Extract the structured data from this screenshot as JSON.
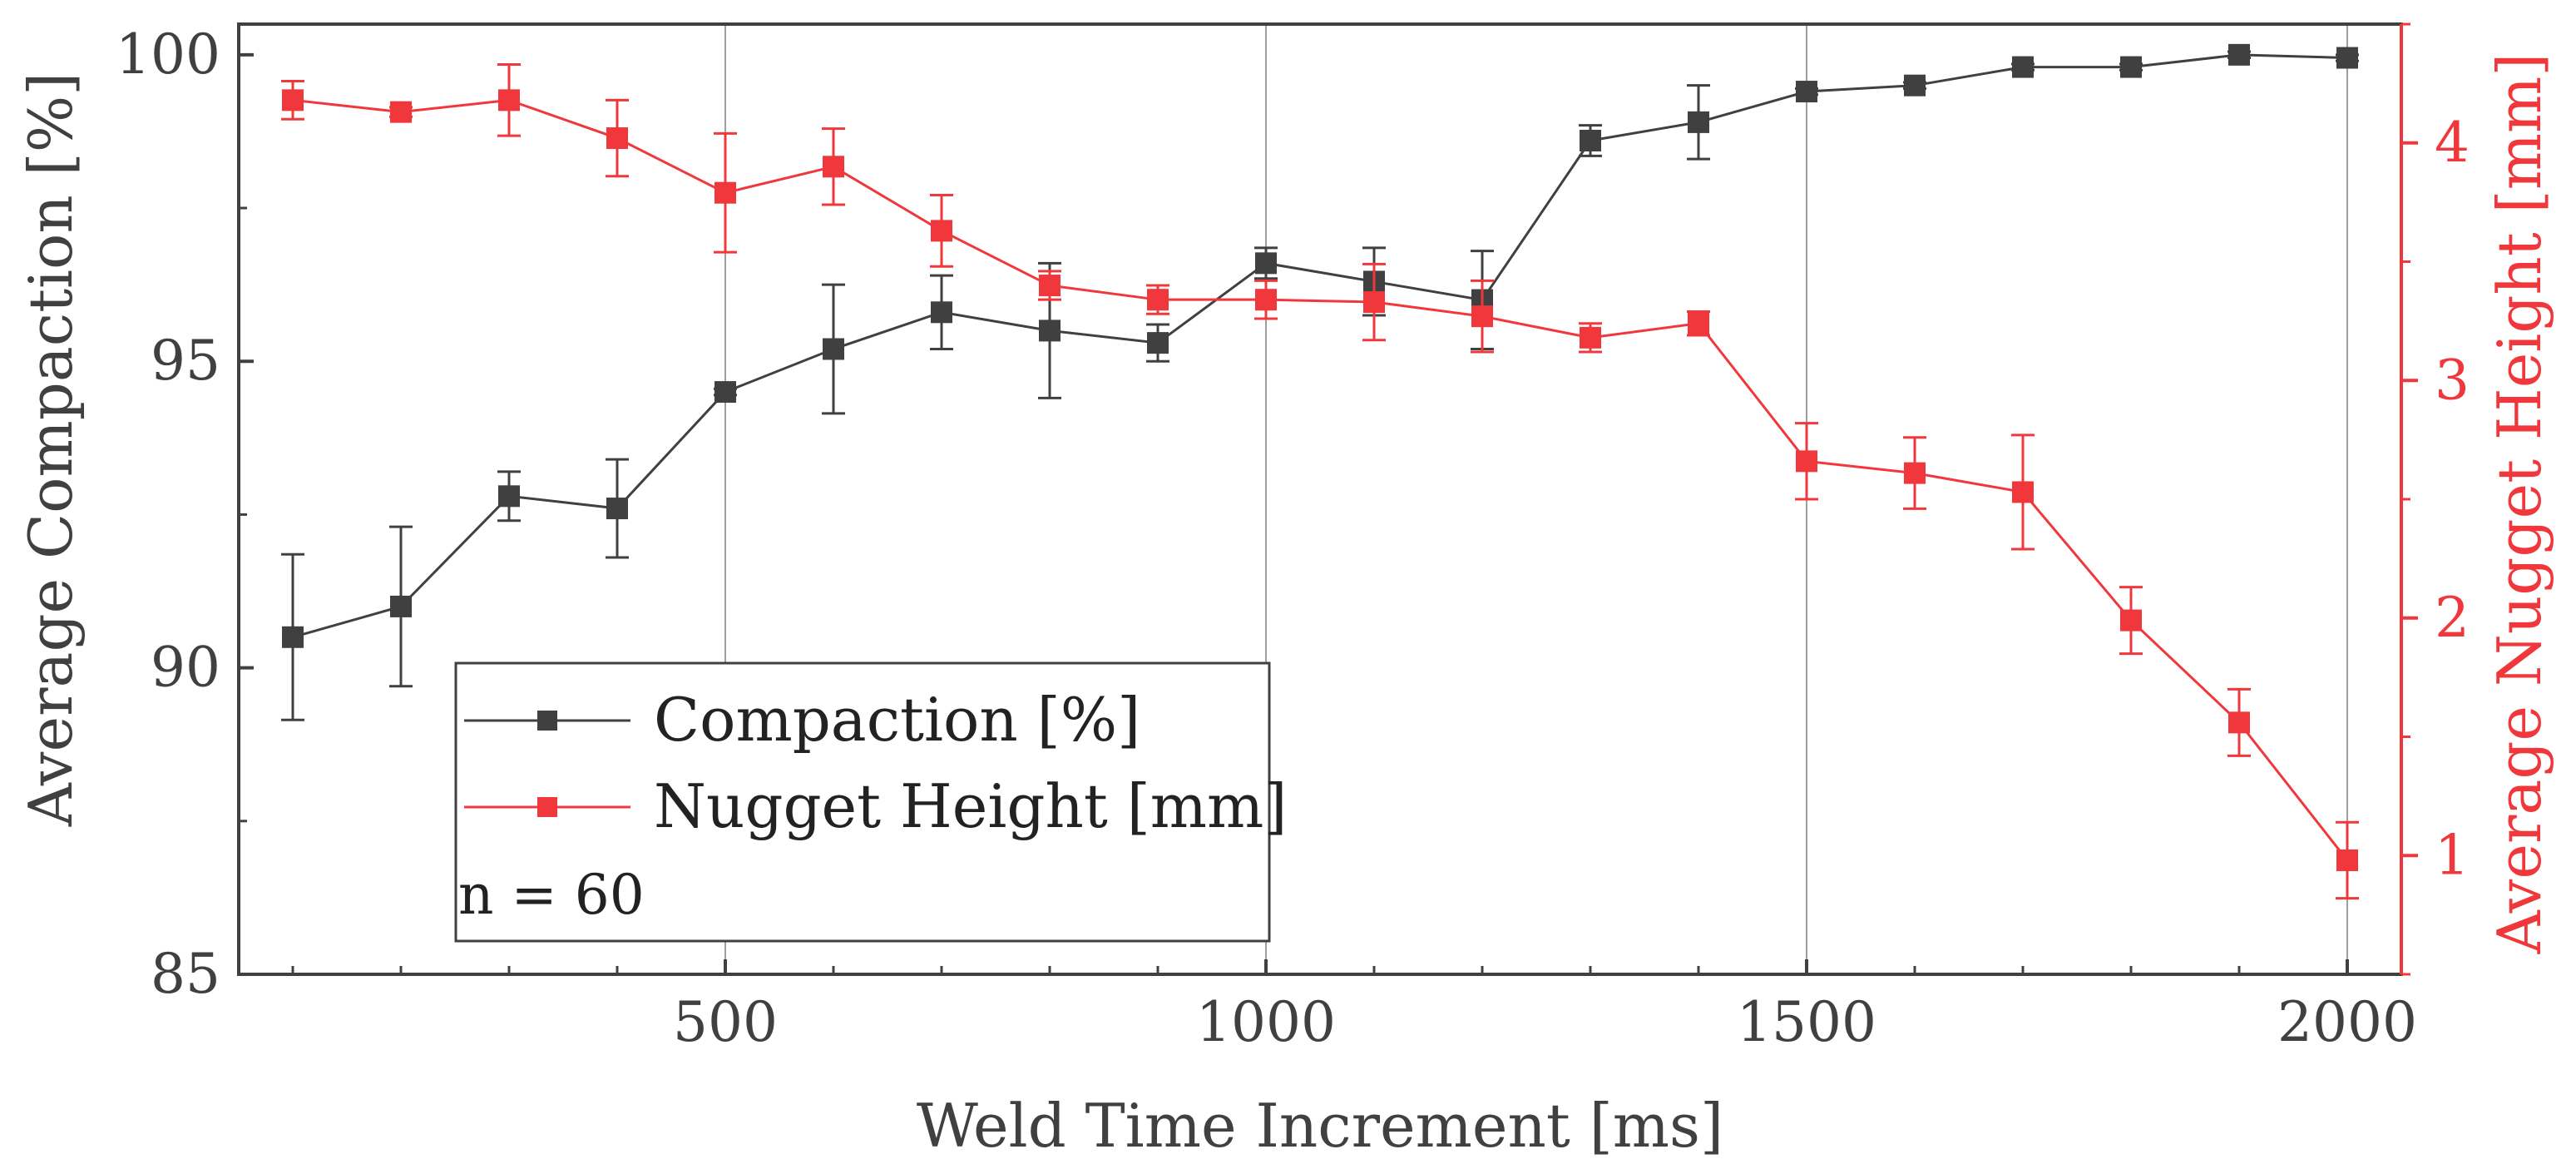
{
  "colors": {
    "left_series": "#404040",
    "right_series": "#f0383c",
    "axis": "#404040",
    "grid": "#9e9e9e",
    "background": "#ffffff"
  },
  "chart_data": {
    "type": "line",
    "xlabel": "Weld Time Increment [ms]",
    "ylabel": "Average Compaction [%]",
    "ylabel_right": "Average Nugget Height [mm]",
    "xlim": [
      50,
      2050
    ],
    "ylim": [
      85,
      100.5
    ],
    "ylim_right": [
      0.5,
      4.5
    ],
    "x_ticks": [
      500,
      1000,
      1500,
      2000
    ],
    "x_tick_labels": [
      "500",
      "1000",
      "1500",
      "2000"
    ],
    "y_ticks": [
      85,
      90,
      95,
      100
    ],
    "y_tick_labels": [
      "85",
      "90",
      "95",
      "100"
    ],
    "y_ticks_right": [
      1,
      2,
      3,
      4
    ],
    "y_tick_labels_right": [
      "1",
      "2",
      "3",
      "4"
    ],
    "grid": "vertical lines at major x ticks",
    "x": [
      100,
      200,
      300,
      400,
      500,
      600,
      700,
      800,
      900,
      1000,
      1100,
      1200,
      1300,
      1400,
      1500,
      1600,
      1700,
      1800,
      1900,
      2000
    ],
    "series": [
      {
        "name": "Compaction [%]",
        "axis": "left",
        "marker": "square",
        "values": [
          90.5,
          91.0,
          92.8,
          92.6,
          94.5,
          95.2,
          95.8,
          95.5,
          95.3,
          96.6,
          96.3,
          96.0,
          98.6,
          98.9,
          99.4,
          99.5,
          99.8,
          99.8,
          100.0,
          99.95
        ],
        "errors": [
          1.35,
          1.3,
          0.4,
          0.8,
          0.05,
          1.05,
          0.6,
          1.1,
          0.3,
          0.25,
          0.55,
          0.8,
          0.25,
          0.6,
          0.05,
          0.05,
          0.05,
          0.05,
          0.05,
          0.05
        ]
      },
      {
        "name": "Nugget Height [mm]",
        "axis": "right",
        "marker": "square",
        "values": [
          4.18,
          4.13,
          4.18,
          4.02,
          3.79,
          3.9,
          3.63,
          3.4,
          3.34,
          3.34,
          3.33,
          3.27,
          3.18,
          3.24,
          2.66,
          2.61,
          2.53,
          1.99,
          1.56,
          0.98
        ],
        "errors": [
          0.08,
          0.02,
          0.15,
          0.16,
          0.25,
          0.16,
          0.15,
          0.06,
          0.06,
          0.08,
          0.16,
          0.15,
          0.06,
          0.05,
          0.16,
          0.15,
          0.24,
          0.14,
          0.14,
          0.16
        ]
      }
    ],
    "legend": {
      "position": "bottom-left",
      "entries": [
        "Compaction [%]",
        "Nugget Height [mm]"
      ],
      "note": "n = 60"
    }
  }
}
